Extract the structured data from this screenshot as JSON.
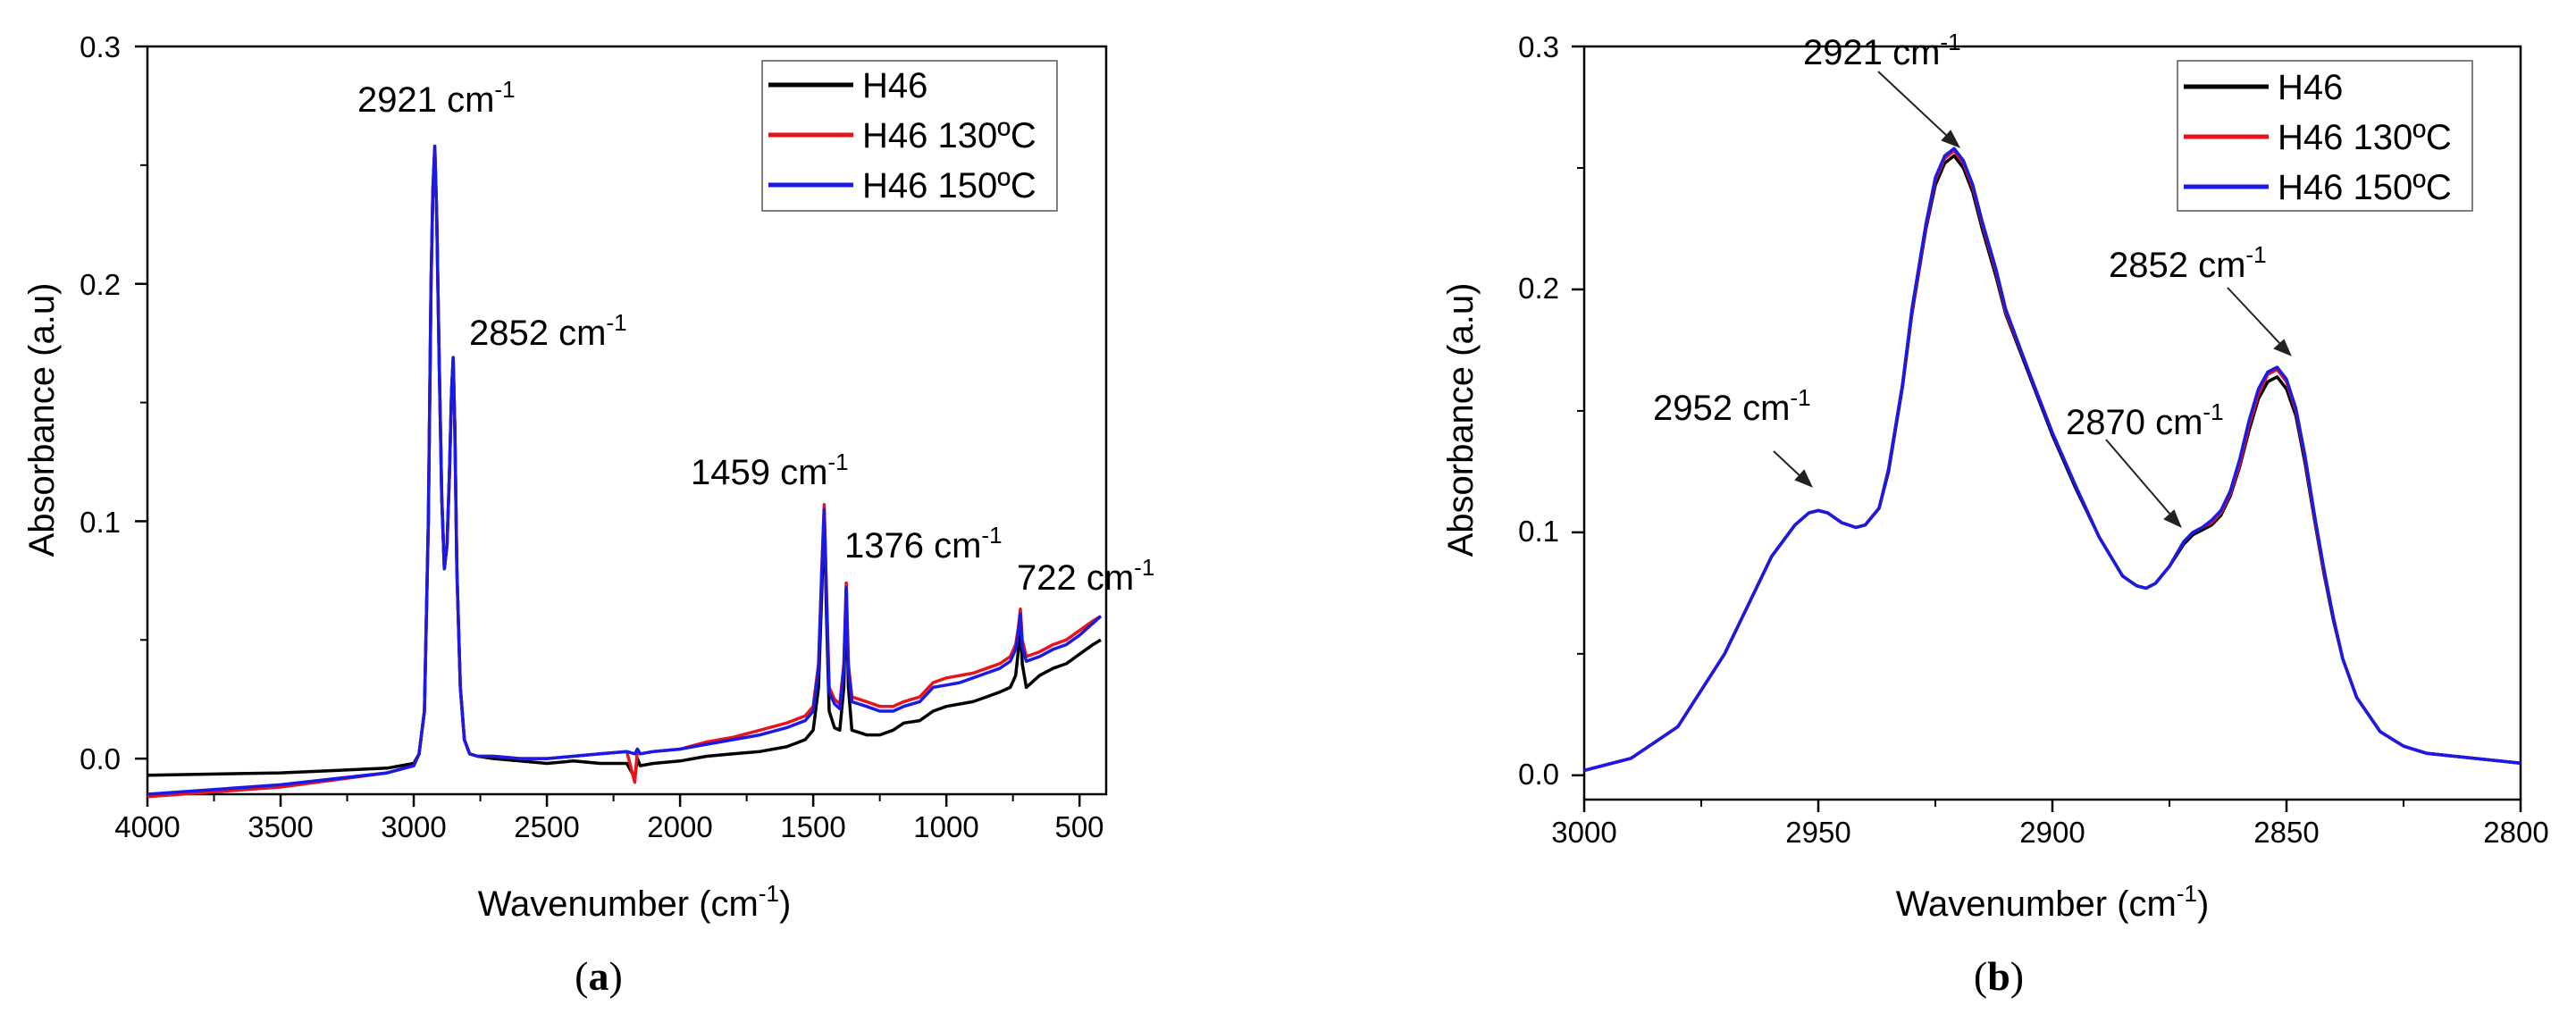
{
  "chart_data": [
    {
      "panel": "a",
      "type": "line",
      "panel_label_prefix": "(",
      "panel_label_letter": "a",
      "panel_label_suffix": ")",
      "title": "",
      "ylabel": "Absorbance (a.u)",
      "xlabel_main": "Wavenumber (cm",
      "xlabel_sup": "-1",
      "xlabel_end": ")",
      "xlim": [
        4000,
        400
      ],
      "ylim": [
        -0.015,
        0.3
      ],
      "xticks": [
        4000,
        3500,
        3000,
        2500,
        2000,
        1500,
        1000,
        500
      ],
      "xtick_labels": [
        "4000",
        "3500",
        "3000",
        "2500",
        "2000",
        "1500",
        "1000",
        "500"
      ],
      "yticks": [
        0.0,
        0.1,
        0.2,
        0.3
      ],
      "ytick_labels": [
        "0.0",
        "0.1",
        "0.2",
        "0.3"
      ],
      "legend_position": "top-right",
      "series": [
        {
          "name": "H46",
          "color": "#000000",
          "x": [
            4000,
            3500,
            3100,
            3000,
            2980,
            2960,
            2945,
            2935,
            2928,
            2921,
            2914,
            2905,
            2895,
            2885,
            2875,
            2866,
            2858,
            2852,
            2846,
            2838,
            2825,
            2810,
            2790,
            2760,
            2700,
            2600,
            2500,
            2400,
            2300,
            2200,
            2170,
            2160,
            2150,
            2100,
            2000,
            1900,
            1800,
            1700,
            1600,
            1530,
            1500,
            1480,
            1468,
            1459,
            1450,
            1440,
            1420,
            1400,
            1385,
            1376,
            1368,
            1355,
            1300,
            1250,
            1200,
            1160,
            1100,
            1050,
            1000,
            950,
            900,
            850,
            800,
            760,
            740,
            730,
            722,
            715,
            700,
            650,
            600,
            550,
            500,
            450,
            420
          ],
          "y": [
            -0.007,
            -0.006,
            -0.004,
            -0.002,
            0.002,
            0.02,
            0.1,
            0.2,
            0.24,
            0.256,
            0.23,
            0.17,
            0.11,
            0.08,
            0.09,
            0.12,
            0.155,
            0.168,
            0.14,
            0.08,
            0.03,
            0.008,
            0.002,
            0.001,
            0.0,
            -0.001,
            -0.002,
            -0.001,
            -0.002,
            -0.002,
            -0.008,
            0.0,
            -0.003,
            -0.002,
            -0.001,
            0.001,
            0.002,
            0.003,
            0.005,
            0.008,
            0.012,
            0.03,
            0.07,
            0.104,
            0.06,
            0.02,
            0.013,
            0.012,
            0.03,
            0.07,
            0.03,
            0.012,
            0.01,
            0.01,
            0.012,
            0.015,
            0.016,
            0.02,
            0.022,
            0.023,
            0.024,
            0.026,
            0.028,
            0.03,
            0.035,
            0.045,
            0.058,
            0.04,
            0.03,
            0.035,
            0.038,
            0.04,
            0.044,
            0.048,
            0.05
          ]
        },
        {
          "name": "H46 130ºC",
          "color": "#e8141a",
          "x": [
            4000,
            3500,
            3100,
            3000,
            2980,
            2960,
            2945,
            2935,
            2928,
            2921,
            2914,
            2905,
            2895,
            2885,
            2875,
            2866,
            2858,
            2852,
            2846,
            2838,
            2825,
            2810,
            2790,
            2760,
            2700,
            2600,
            2500,
            2400,
            2300,
            2200,
            2170,
            2160,
            2150,
            2100,
            2000,
            1900,
            1800,
            1700,
            1600,
            1530,
            1500,
            1480,
            1468,
            1459,
            1450,
            1440,
            1420,
            1400,
            1385,
            1376,
            1368,
            1355,
            1300,
            1250,
            1200,
            1160,
            1100,
            1050,
            1000,
            950,
            900,
            850,
            800,
            760,
            740,
            730,
            722,
            715,
            700,
            650,
            600,
            550,
            500,
            450,
            420
          ],
          "y": [
            -0.016,
            -0.012,
            -0.006,
            -0.003,
            0.002,
            0.02,
            0.1,
            0.2,
            0.24,
            0.258,
            0.23,
            0.17,
            0.11,
            0.08,
            0.09,
            0.12,
            0.155,
            0.169,
            0.14,
            0.08,
            0.03,
            0.008,
            0.002,
            0.001,
            0.001,
            0.0,
            0.0,
            0.001,
            0.002,
            0.003,
            -0.01,
            0.004,
            0.002,
            0.003,
            0.004,
            0.007,
            0.009,
            0.012,
            0.015,
            0.018,
            0.022,
            0.04,
            0.08,
            0.107,
            0.07,
            0.03,
            0.025,
            0.023,
            0.04,
            0.074,
            0.04,
            0.026,
            0.024,
            0.022,
            0.022,
            0.024,
            0.026,
            0.032,
            0.034,
            0.035,
            0.036,
            0.038,
            0.04,
            0.043,
            0.048,
            0.055,
            0.063,
            0.05,
            0.043,
            0.045,
            0.048,
            0.05,
            0.054,
            0.058,
            0.06
          ]
        },
        {
          "name": "H46 150ºC",
          "color": "#1a1ae6",
          "x": [
            4000,
            3500,
            3100,
            3000,
            2980,
            2960,
            2945,
            2935,
            2928,
            2921,
            2914,
            2905,
            2895,
            2885,
            2875,
            2866,
            2858,
            2852,
            2846,
            2838,
            2825,
            2810,
            2790,
            2760,
            2700,
            2600,
            2500,
            2400,
            2300,
            2200,
            2170,
            2160,
            2150,
            2100,
            2000,
            1900,
            1800,
            1700,
            1600,
            1530,
            1500,
            1480,
            1468,
            1459,
            1450,
            1440,
            1420,
            1400,
            1385,
            1376,
            1368,
            1355,
            1300,
            1250,
            1200,
            1160,
            1100,
            1050,
            1000,
            950,
            900,
            850,
            800,
            760,
            740,
            730,
            722,
            715,
            700,
            650,
            600,
            550,
            500,
            450,
            420
          ],
          "y": [
            -0.015,
            -0.011,
            -0.006,
            -0.003,
            0.002,
            0.02,
            0.1,
            0.2,
            0.24,
            0.258,
            0.23,
            0.17,
            0.11,
            0.08,
            0.09,
            0.12,
            0.155,
            0.169,
            0.14,
            0.08,
            0.03,
            0.008,
            0.002,
            0.001,
            0.001,
            0.0,
            0.0,
            0.001,
            0.002,
            0.003,
            0.002,
            0.004,
            0.002,
            0.003,
            0.004,
            0.006,
            0.008,
            0.01,
            0.013,
            0.016,
            0.02,
            0.038,
            0.078,
            0.105,
            0.068,
            0.028,
            0.023,
            0.021,
            0.038,
            0.072,
            0.038,
            0.024,
            0.022,
            0.02,
            0.02,
            0.022,
            0.024,
            0.03,
            0.031,
            0.032,
            0.034,
            0.036,
            0.038,
            0.041,
            0.046,
            0.053,
            0.061,
            0.047,
            0.041,
            0.043,
            0.046,
            0.048,
            0.052,
            0.057,
            0.06
          ]
        }
      ],
      "annotations": [
        {
          "text": "2921 cm",
          "sup": "-1"
        },
        {
          "text": "2852 cm",
          "sup": "-1"
        },
        {
          "text": "1459 cm",
          "sup": "-1"
        },
        {
          "text": "1376 cm",
          "sup": "-1"
        },
        {
          "text": "722 cm",
          "sup": "-1"
        }
      ]
    },
    {
      "panel": "b",
      "type": "line",
      "panel_label_prefix": "(",
      "panel_label_letter": "b",
      "panel_label_suffix": ")",
      "title": "",
      "ylabel": "Absorbance (a.u)",
      "xlabel_main": "Wavenumber (cm",
      "xlabel_sup": "-1",
      "xlabel_end": ")",
      "xlim": [
        3000,
        2800
      ],
      "ylim": [
        -0.01,
        0.3
      ],
      "xticks": [
        3000,
        2950,
        2900,
        2850,
        2800
      ],
      "xtick_labels": [
        "3000",
        "2950",
        "2900",
        "2850",
        "2800"
      ],
      "yticks": [
        0.0,
        0.1,
        0.2,
        0.3
      ],
      "ytick_labels": [
        "0.0",
        "0.1",
        "0.2",
        "0.3"
      ],
      "legend_position": "top-right",
      "series": [
        {
          "name": "H46",
          "color": "#000000",
          "x": [
            3000,
            2990,
            2980,
            2970,
            2965,
            2960,
            2955,
            2952,
            2950,
            2948,
            2945,
            2942,
            2940,
            2937,
            2935,
            2932,
            2930,
            2927,
            2925,
            2923,
            2921,
            2919,
            2917,
            2915,
            2912,
            2910,
            2905,
            2900,
            2895,
            2890,
            2885,
            2882,
            2880,
            2878,
            2875,
            2872,
            2870,
            2868,
            2866,
            2864,
            2862,
            2860,
            2858,
            2856,
            2854,
            2852,
            2850,
            2848,
            2846,
            2844,
            2842,
            2840,
            2838,
            2835,
            2830,
            2825,
            2820,
            2810,
            2800
          ],
          "y": [
            0.002,
            0.007,
            0.02,
            0.05,
            0.07,
            0.09,
            0.103,
            0.108,
            0.109,
            0.108,
            0.104,
            0.102,
            0.103,
            0.11,
            0.125,
            0.16,
            0.19,
            0.225,
            0.243,
            0.252,
            0.255,
            0.25,
            0.24,
            0.225,
            0.205,
            0.19,
            0.165,
            0.14,
            0.118,
            0.098,
            0.082,
            0.078,
            0.077,
            0.079,
            0.086,
            0.095,
            0.099,
            0.101,
            0.103,
            0.107,
            0.115,
            0.127,
            0.142,
            0.155,
            0.162,
            0.164,
            0.159,
            0.148,
            0.128,
            0.105,
            0.083,
            0.064,
            0.048,
            0.032,
            0.018,
            0.012,
            0.009,
            0.007,
            0.005
          ]
        },
        {
          "name": "H46 130ºC",
          "color": "#e8141a",
          "x": [
            3000,
            2990,
            2980,
            2970,
            2965,
            2960,
            2955,
            2952,
            2950,
            2948,
            2945,
            2942,
            2940,
            2937,
            2935,
            2932,
            2930,
            2927,
            2925,
            2923,
            2921,
            2919,
            2917,
            2915,
            2912,
            2910,
            2905,
            2900,
            2895,
            2890,
            2885,
            2882,
            2880,
            2878,
            2875,
            2872,
            2870,
            2868,
            2866,
            2864,
            2862,
            2860,
            2858,
            2856,
            2854,
            2852,
            2850,
            2848,
            2846,
            2844,
            2842,
            2840,
            2838,
            2835,
            2830,
            2825,
            2820,
            2810,
            2800
          ],
          "y": [
            0.002,
            0.007,
            0.02,
            0.05,
            0.07,
            0.09,
            0.103,
            0.108,
            0.109,
            0.108,
            0.104,
            0.102,
            0.103,
            0.11,
            0.126,
            0.161,
            0.191,
            0.226,
            0.245,
            0.254,
            0.257,
            0.252,
            0.242,
            0.227,
            0.207,
            0.191,
            0.166,
            0.141,
            0.119,
            0.098,
            0.082,
            0.078,
            0.077,
            0.079,
            0.086,
            0.096,
            0.1,
            0.102,
            0.104,
            0.108,
            0.116,
            0.128,
            0.144,
            0.157,
            0.165,
            0.167,
            0.162,
            0.15,
            0.13,
            0.106,
            0.084,
            0.065,
            0.048,
            0.032,
            0.018,
            0.012,
            0.009,
            0.007,
            0.005
          ]
        },
        {
          "name": "H46 150ºC",
          "color": "#1a1ae6",
          "x": [
            3000,
            2990,
            2980,
            2970,
            2965,
            2960,
            2955,
            2952,
            2950,
            2948,
            2945,
            2942,
            2940,
            2937,
            2935,
            2932,
            2930,
            2927,
            2925,
            2923,
            2921,
            2919,
            2917,
            2915,
            2912,
            2910,
            2905,
            2900,
            2895,
            2890,
            2885,
            2882,
            2880,
            2878,
            2875,
            2872,
            2870,
            2868,
            2866,
            2864,
            2862,
            2860,
            2858,
            2856,
            2854,
            2852,
            2850,
            2848,
            2846,
            2844,
            2842,
            2840,
            2838,
            2835,
            2830,
            2825,
            2820,
            2810,
            2800
          ],
          "y": [
            0.002,
            0.007,
            0.02,
            0.05,
            0.07,
            0.09,
            0.103,
            0.108,
            0.109,
            0.108,
            0.104,
            0.102,
            0.103,
            0.11,
            0.126,
            0.161,
            0.192,
            0.227,
            0.246,
            0.255,
            0.258,
            0.253,
            0.243,
            0.228,
            0.208,
            0.192,
            0.166,
            0.141,
            0.119,
            0.098,
            0.082,
            0.078,
            0.077,
            0.079,
            0.086,
            0.096,
            0.1,
            0.102,
            0.105,
            0.109,
            0.117,
            0.13,
            0.146,
            0.159,
            0.166,
            0.168,
            0.163,
            0.151,
            0.131,
            0.107,
            0.085,
            0.065,
            0.048,
            0.032,
            0.018,
            0.012,
            0.009,
            0.007,
            0.005
          ]
        }
      ],
      "annotations": [
        {
          "text": "2921 cm",
          "sup": "-1"
        },
        {
          "text": "2952 cm",
          "sup": "-1"
        },
        {
          "text": "2870 cm",
          "sup": "-1"
        },
        {
          "text": "2852 cm",
          "sup": "-1"
        }
      ]
    }
  ]
}
